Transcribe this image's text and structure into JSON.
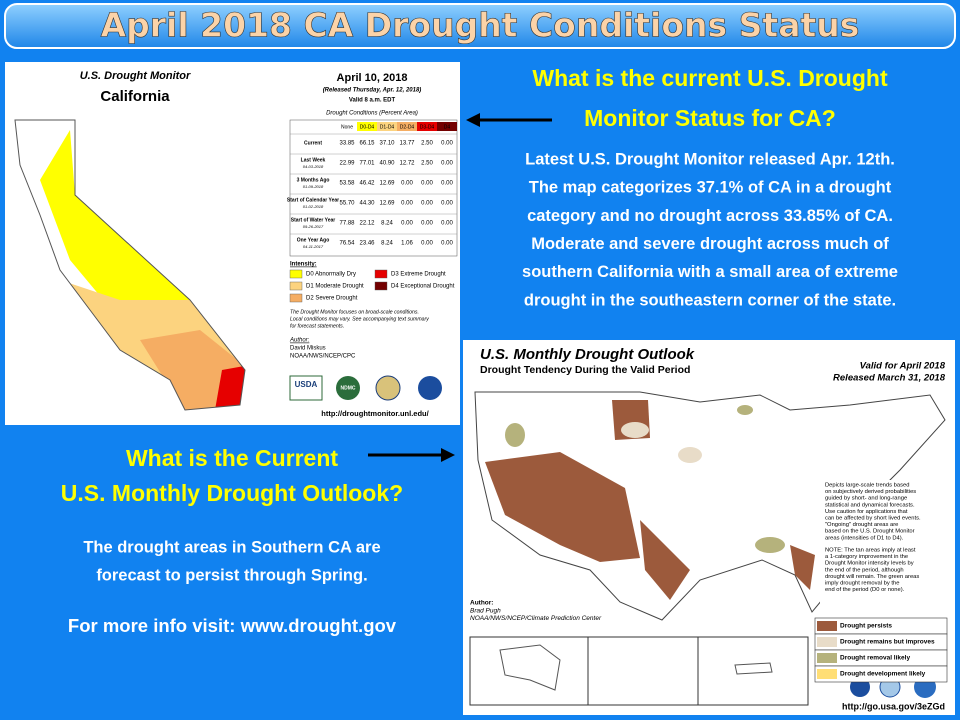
{
  "title": "April 2018 CA Drought Conditions Status",
  "status": {
    "heading": [
      "What is the current U.S. Drought",
      "Monitor Status for CA?"
    ],
    "body": [
      "Latest U.S. Drought Monitor released Apr. 12th.",
      "The map categorizes 37.1% of CA in a drought",
      "category and no drought across 33.85% of CA.",
      "Moderate and severe drought across much of",
      "southern California with a small area of extreme",
      "drought in the southeastern corner of the state."
    ]
  },
  "outlook": {
    "heading": [
      "What is the Current",
      "U.S. Monthly Drought Outlook?"
    ],
    "body": [
      "The drought areas in Southern CA are",
      "forecast to persist through Spring."
    ],
    "link": "For more info visit: www.drought.gov"
  },
  "monitor_map": {
    "title": "U.S. Drought Monitor",
    "state": "California",
    "date": "April 10, 2018",
    "released": "(Released Thursday, Apr. 12, 2018)",
    "valid": "Valid 8 a.m. EDT",
    "table_title": "Drought Conditions (Percent Area)",
    "columns": [
      "None",
      "D0-D4",
      "D1-D4",
      "D2-D4",
      "D3-D4",
      "D4"
    ],
    "rows": [
      {
        "label": "Current",
        "date": null,
        "cells": [
          "33.85",
          "66.15",
          "37.10",
          "13.77",
          "2.50",
          "0.00"
        ]
      },
      {
        "label": "Last Week",
        "date": "04-03-2018",
        "cells": [
          "22.99",
          "77.01",
          "40.90",
          "12.72",
          "2.50",
          "0.00"
        ]
      },
      {
        "label": "3 Months Ago",
        "date": "01-09-2018",
        "cells": [
          "53.58",
          "46.42",
          "12.69",
          "0.00",
          "0.00",
          "0.00"
        ]
      },
      {
        "label": "Start of Calendar Year",
        "date": "01-02-2018",
        "cells": [
          "55.70",
          "44.30",
          "12.69",
          "0.00",
          "0.00",
          "0.00"
        ]
      },
      {
        "label": "Start of Water Year",
        "date": "09-26-2017",
        "cells": [
          "77.88",
          "22.12",
          "8.24",
          "0.00",
          "0.00",
          "0.00"
        ]
      },
      {
        "label": "One Year Ago",
        "date": "04-11-2017",
        "cells": [
          "76.54",
          "23.46",
          "8.24",
          "1.06",
          "0.00",
          "0.00"
        ]
      }
    ],
    "intensity_title": "Intensity:",
    "intensity": [
      "D0 Abnormally Dry",
      "D1 Moderate Drought",
      "D2 Severe Drought",
      "D3 Extreme Drought",
      "D4 Exceptional Drought"
    ],
    "note": [
      "The Drought Monitor focuses on broad-scale conditions.",
      "Local conditions may vary. See accompanying text summary",
      "for forecast statements."
    ],
    "author_title": "Author:",
    "author": [
      "David Miskus",
      "NOAA/NWS/NCEP/CPC"
    ],
    "logos": [
      "USDA",
      "NDMC"
    ],
    "url": "http://droughtmonitor.unl.edu/"
  },
  "outlook_map": {
    "title": "U.S. Monthly Drought Outlook",
    "subtitle": "Drought Tendency During the Valid Period",
    "valid": "Valid for April 2018",
    "released": "Released March 31, 2018",
    "description": [
      "Depicts large-scale trends based",
      "on subjectively derived probabilities",
      "guided by short- and long-range",
      "statistical and dynamical forecasts.",
      "Use caution for applications that",
      "can be affected by short lived events.",
      "\"Ongoing\" drought areas are",
      "based on the U.S. Drought Monitor",
      "areas (intensities of D1 to D4)."
    ],
    "note": [
      "NOTE: The tan areas imply at least",
      "a 1-category improvement in the",
      "Drought Monitor intensity levels by",
      "the end of the period, although",
      "drought will remain. The green areas",
      "imply drought removal by the",
      "end of the period (D0 or none)."
    ],
    "author_title": "Author:",
    "author": [
      "Brad Pugh",
      "NOAA/NWS/NCEP/Climate Prediction Center"
    ],
    "legend": [
      "Drought persists",
      "Drought remains but improves",
      "Drought removal likely",
      "Drought development likely"
    ],
    "url": "http://go.usa.gov/3eZGd"
  }
}
